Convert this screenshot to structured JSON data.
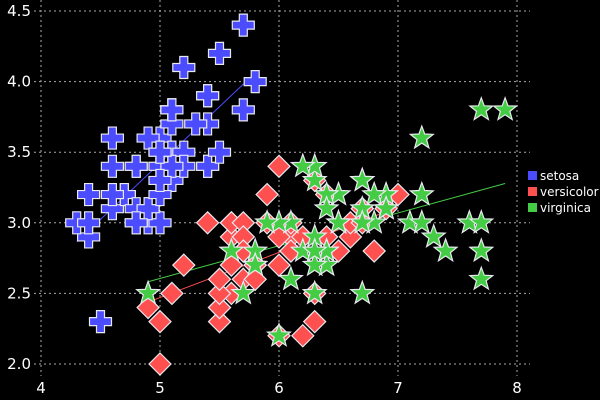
{
  "chart_data": {
    "type": "scatter",
    "title": "",
    "xlabel": "",
    "ylabel": "",
    "xlim": [
      4,
      8
    ],
    "ylim": [
      2.0,
      4.5
    ],
    "xticks": [
      "4",
      "5",
      "6",
      "7",
      "8"
    ],
    "yticks": [
      "2.0",
      "2.5",
      "3.0",
      "3.5",
      "4.0",
      "4.5"
    ],
    "grid": true,
    "legend_placement": "right",
    "background": "#000000",
    "trend_lines": "linear fit per series",
    "series": [
      {
        "name": "setosa",
        "color": "#4c4cff",
        "marker": "cross",
        "x": [
          5.1,
          4.9,
          4.7,
          4.6,
          5.0,
          5.4,
          4.6,
          5.0,
          4.4,
          4.9,
          5.4,
          4.8,
          4.8,
          4.3,
          5.8,
          5.7,
          5.4,
          5.1,
          5.7,
          5.1,
          5.4,
          5.1,
          4.6,
          5.1,
          4.8,
          5.0,
          5.0,
          5.2,
          5.2,
          4.7,
          4.8,
          5.4,
          5.2,
          5.5,
          4.9,
          5.0,
          5.5,
          4.9,
          4.4,
          5.1,
          5.0,
          4.5,
          4.4,
          5.0,
          5.1,
          4.8,
          5.1,
          4.6,
          5.3,
          5.0
        ],
        "y": [
          3.5,
          3.0,
          3.2,
          3.1,
          3.6,
          3.9,
          3.4,
          3.4,
          2.9,
          3.1,
          3.7,
          3.4,
          3.0,
          3.0,
          4.0,
          4.4,
          3.9,
          3.5,
          3.8,
          3.8,
          3.4,
          3.7,
          3.6,
          3.3,
          3.4,
          3.0,
          3.4,
          3.5,
          3.4,
          3.2,
          3.1,
          3.4,
          4.1,
          4.2,
          3.1,
          3.2,
          3.5,
          3.6,
          3.0,
          3.4,
          3.5,
          2.3,
          3.2,
          3.5,
          3.8,
          3.0,
          3.8,
          3.2,
          3.7,
          3.3
        ]
      },
      {
        "name": "versicolor",
        "color": "#ff5050",
        "marker": "diamond",
        "x": [
          7.0,
          6.4,
          6.9,
          5.5,
          6.5,
          5.7,
          6.3,
          4.9,
          6.6,
          5.2,
          5.0,
          5.9,
          6.0,
          6.1,
          5.6,
          6.7,
          5.6,
          5.8,
          6.2,
          5.6,
          5.9,
          6.1,
          6.3,
          6.1,
          6.4,
          6.6,
          6.8,
          6.7,
          6.0,
          5.7,
          5.5,
          5.5,
          5.8,
          6.0,
          5.4,
          6.0,
          6.7,
          6.3,
          5.6,
          5.5,
          5.5,
          6.1,
          5.8,
          5.0,
          5.6,
          5.7,
          5.7,
          6.2,
          5.1,
          5.7
        ],
        "y": [
          3.2,
          3.2,
          3.1,
          2.3,
          2.8,
          2.8,
          3.3,
          2.4,
          2.9,
          2.7,
          2.0,
          3.0,
          2.2,
          2.9,
          2.9,
          3.1,
          3.0,
          2.7,
          2.2,
          2.5,
          3.2,
          2.8,
          2.5,
          2.8,
          2.9,
          3.0,
          2.8,
          3.0,
          2.9,
          2.6,
          2.4,
          2.4,
          2.7,
          2.7,
          3.0,
          3.4,
          3.1,
          2.3,
          3.0,
          2.5,
          2.6,
          3.0,
          2.6,
          2.3,
          2.7,
          3.0,
          2.9,
          2.9,
          2.5,
          2.8
        ]
      },
      {
        "name": "virginica",
        "color": "#44cc44",
        "marker": "star",
        "x": [
          6.3,
          5.8,
          7.1,
          6.3,
          6.5,
          7.6,
          4.9,
          7.3,
          6.7,
          7.2,
          6.5,
          6.4,
          6.8,
          5.7,
          5.8,
          6.4,
          6.5,
          7.7,
          7.7,
          6.0,
          6.9,
          5.6,
          7.7,
          6.3,
          6.7,
          7.2,
          6.2,
          6.1,
          6.4,
          7.2,
          7.4,
          7.9,
          6.4,
          6.3,
          6.1,
          7.7,
          6.3,
          6.4,
          6.0,
          6.9,
          6.7,
          6.9,
          5.8,
          6.8,
          6.7,
          6.7,
          6.3,
          6.5,
          6.2,
          5.9
        ],
        "y": [
          3.3,
          2.7,
          3.0,
          2.9,
          3.0,
          3.0,
          2.5,
          2.9,
          2.5,
          3.6,
          3.2,
          2.7,
          3.0,
          2.5,
          2.8,
          3.2,
          3.0,
          3.8,
          2.6,
          2.2,
          3.2,
          2.8,
          2.8,
          2.7,
          3.3,
          3.2,
          2.8,
          3.0,
          2.8,
          3.0,
          2.8,
          3.8,
          2.8,
          2.8,
          2.6,
          3.0,
          3.4,
          3.1,
          3.0,
          3.1,
          3.1,
          3.1,
          2.7,
          3.2,
          3.3,
          3.0,
          2.5,
          3.0,
          3.4,
          3.0
        ]
      }
    ]
  }
}
